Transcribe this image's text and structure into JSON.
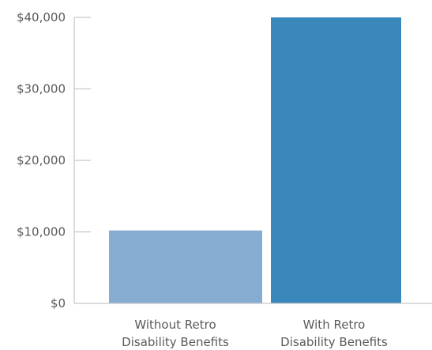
{
  "chart_data": {
    "type": "bar",
    "title": "",
    "xlabel": "",
    "ylabel": "",
    "categories": [
      [
        "Without Retro",
        "Disability Benefits"
      ],
      [
        "With Retro",
        "Disability Benefits"
      ]
    ],
    "values": [
      10200,
      40000
    ],
    "bar_colors": [
      "#87acd1",
      "#3a88bb"
    ],
    "axis_color": "#c8c8c8",
    "ylim": [
      0,
      40000
    ],
    "yticks": [
      0,
      10000,
      20000,
      30000,
      40000
    ],
    "ytick_labels": [
      "$0",
      "$10,000",
      "$20,000",
      "$30,000",
      "$40,000"
    ],
    "grid": false,
    "legend": "none"
  }
}
